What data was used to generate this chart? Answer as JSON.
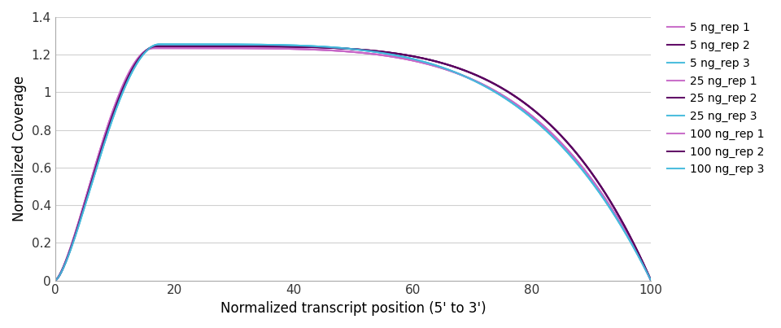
{
  "xlabel": "Normalized transcript position (5' to 3')",
  "ylabel": "Normalized Coverage",
  "xlim": [
    0,
    100
  ],
  "ylim": [
    0,
    1.4
  ],
  "xticks": [
    0,
    20,
    40,
    60,
    80,
    100
  ],
  "yticks": [
    0,
    0.2,
    0.4,
    0.6,
    0.8,
    1.0,
    1.2,
    1.4
  ],
  "legend_entries": [
    "5 ng_rep 1",
    "5 ng_rep 2",
    "5 ng_rep 3",
    "25 ng_rep 1",
    "25 ng_rep 2",
    "25 ng_rep 3",
    "100 ng_rep 1",
    "100 ng_rep 2",
    "100 ng_rep 3"
  ],
  "line_colors": [
    "#c868c8",
    "#5a0060",
    "#44bbdd",
    "#c868c8",
    "#5a0060",
    "#44bbdd",
    "#c868c8",
    "#5a0060",
    "#44bbdd"
  ],
  "line_widths": [
    1.5,
    1.5,
    1.5,
    1.5,
    1.5,
    1.5,
    1.5,
    1.5,
    1.5
  ],
  "background_color": "#ffffff",
  "grid_color": "#d0d0d0",
  "figsize": [
    9.6,
    4.03
  ],
  "dpi": 100,
  "peak_x": [
    16.5,
    17.0,
    17.5,
    16.5,
    17.0,
    17.5,
    16.5,
    17.0,
    17.5
  ],
  "peak_y": [
    1.235,
    1.245,
    1.255,
    1.235,
    1.245,
    1.255,
    1.235,
    1.245,
    1.255
  ],
  "fall_power": [
    4.5,
    4.8,
    4.2,
    4.5,
    4.8,
    4.2,
    4.5,
    4.8,
    4.2
  ]
}
